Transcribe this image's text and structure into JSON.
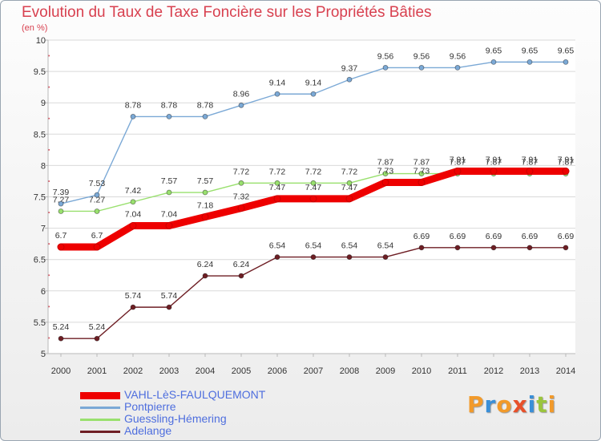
{
  "chart_data": {
    "type": "line",
    "title": "Evolution du Taux de Taxe Foncière sur les Propriétés Bâties",
    "subtitle": "(en %)",
    "x": [
      2000,
      2001,
      2002,
      2003,
      2004,
      2005,
      2006,
      2007,
      2008,
      2009,
      2010,
      2011,
      2012,
      2013,
      2014
    ],
    "x_tick_labels": [
      "2000",
      "2001",
      "2002",
      "2003",
      "2004",
      "2005",
      "2006",
      "2007",
      "2008",
      "2009",
      "2010",
      "2011",
      "2012",
      "2013",
      "2014"
    ],
    "ylim": [
      5,
      10
    ],
    "y_ticks": [
      5,
      5.5,
      6,
      6.5,
      7,
      7.5,
      8,
      8.5,
      9,
      9.5,
      10
    ],
    "y_tick_labels": [
      "5",
      "5.5",
      "6",
      "6.5",
      "7",
      "7.5",
      "8",
      "8.5",
      "9",
      "9.5",
      "10"
    ],
    "grid": "horizontal",
    "legend_position": "bottom-left",
    "series": [
      {
        "name": "Adelange",
        "color": "#6e1e24",
        "values": [
          5.24,
          5.24,
          5.74,
          5.74,
          6.24,
          6.24,
          6.54,
          6.54,
          6.54,
          6.54,
          6.69,
          6.69,
          6.69,
          6.69,
          6.69
        ],
        "labels": [
          "5.24",
          "5.24",
          "5.74",
          "5.74",
          "6.24",
          "6.24",
          "6.54",
          "6.54",
          "6.54",
          "6.54",
          "6.69",
          "6.69",
          "6.69",
          "6.69",
          "6.69"
        ]
      },
      {
        "name": "Guessling-Hémering",
        "color": "#99e06e",
        "values": [
          7.27,
          7.27,
          7.42,
          7.57,
          7.57,
          7.72,
          7.72,
          7.72,
          7.72,
          7.87,
          7.87,
          7.87,
          7.87,
          7.87,
          7.87
        ],
        "labels": [
          "7.27",
          "7.27",
          "7.42",
          "7.57",
          "7.57",
          "7.72",
          "7.72",
          "7.72",
          "7.72",
          "7.87",
          "7.87",
          "7.87",
          "7.87",
          "7.87",
          "7.87"
        ]
      },
      {
        "name": "Pontpierre",
        "color": "#7ba9d6",
        "values": [
          7.39,
          7.53,
          8.78,
          8.78,
          8.78,
          8.96,
          9.14,
          9.14,
          9.37,
          9.56,
          9.56,
          9.56,
          9.65,
          9.65,
          9.65
        ],
        "labels": [
          "7.39",
          "7.53",
          "8.78",
          "8.78",
          "8.78",
          "8.96",
          "9.14",
          "9.14",
          "9.37",
          "9.56",
          "9.56",
          "9.56",
          "9.65",
          "9.65",
          "9.65"
        ]
      },
      {
        "name": "VAHL-LèS-FAULQUEMONT",
        "color": "#ee0000",
        "values": [
          6.7,
          6.7,
          7.04,
          7.04,
          7.18,
          7.32,
          7.47,
          7.47,
          7.47,
          7.73,
          7.73,
          7.91,
          7.91,
          7.91,
          7.91
        ],
        "labels": [
          "6.7",
          "6.7",
          "7.04",
          "7.04",
          "7.18",
          "7.32",
          "7.47",
          "7.47",
          "7.47",
          "7.73",
          "7.73",
          "7.91",
          "7.91",
          "7.91",
          "7.91"
        ]
      }
    ],
    "legend": [
      "VAHL-LèS-FAULQUEMONT",
      "Pontpierre",
      "Guessling-Hémering",
      "Adelange"
    ]
  },
  "brand": {
    "text": "Proxiti",
    "colors": [
      "#f29a2a",
      "#3a8fd8",
      "#f29a2a",
      "#e8502a",
      "#3a8fd8",
      "#9bc53d",
      "#f29a2a"
    ]
  }
}
